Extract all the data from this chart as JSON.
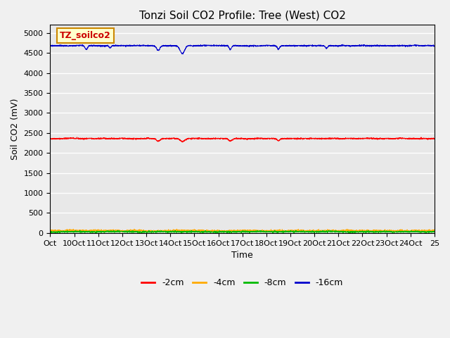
{
  "title": "Tonzi Soil CO2 Profile: Tree (West) CO2",
  "ylabel": "Soil CO2 (mV)",
  "xlabel": "Time",
  "watermark": "TZ_soilco2",
  "background_color": "#f0f0f0",
  "plot_bg_color": "#e8e8e8",
  "ylim": [
    0,
    5200
  ],
  "yticks": [
    0,
    500,
    1000,
    1500,
    2000,
    2500,
    3000,
    3500,
    4000,
    4500,
    5000
  ],
  "x_start": 0,
  "x_end": 16,
  "n_points": 3000,
  "series": {
    "-2cm": {
      "color": "#ff0000",
      "mean": 2360,
      "noise": 8
    },
    "-4cm": {
      "color": "#ffaa00",
      "mean": 55,
      "noise": 12
    },
    "-8cm": {
      "color": "#00bb00",
      "mean": 30,
      "noise": 10
    },
    "-16cm": {
      "color": "#0000cc",
      "mean": 4680,
      "noise": 8
    }
  },
  "x_tick_labels": [
    "Oct",
    "10Oct",
    "11Oct",
    "12Oct",
    "13Oct",
    "14Oct",
    "15Oct",
    "16Oct",
    "17Oct",
    "18Oct",
    "19Oct",
    "20Oct",
    "21Oct",
    "22Oct",
    "23Oct",
    "24Oct",
    "25"
  ],
  "x_tick_positions": [
    0,
    1,
    2,
    3,
    4,
    5,
    6,
    7,
    8,
    9,
    10,
    11,
    12,
    13,
    14,
    15,
    16
  ],
  "title_fontsize": 11,
  "label_fontsize": 9,
  "tick_fontsize": 8,
  "legend_fontsize": 9
}
